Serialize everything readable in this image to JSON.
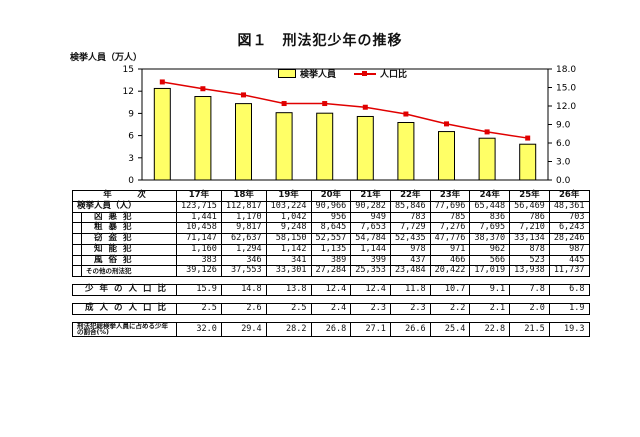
{
  "title": "図１　刑法犯少年の推移",
  "y_left_label": "検挙人員（万人）",
  "legend": {
    "bar": "検挙人員",
    "line": "人口比"
  },
  "colors": {
    "bar": "#ffff66",
    "line": "#e00000"
  },
  "chart_data": {
    "type": "bar",
    "categories": [
      "17年",
      "18年",
      "19年",
      "20年",
      "21年",
      "22年",
      "23年",
      "24年",
      "25年",
      "26年"
    ],
    "series": [
      {
        "name": "検挙人員",
        "type": "bar",
        "axis": "left",
        "values": [
          12.3715,
          11.2817,
          10.3224,
          9.0966,
          9.0282,
          8.5846,
          7.7696,
          6.5448,
          5.6469,
          4.8361
        ]
      },
      {
        "name": "人口比",
        "type": "line",
        "axis": "right",
        "values": [
          15.9,
          14.8,
          13.8,
          12.4,
          12.4,
          11.8,
          10.7,
          9.1,
          7.8,
          6.8
        ]
      }
    ],
    "y_left": {
      "min": 0,
      "max": 15,
      "ticks": [
        "0",
        "3",
        "6",
        "9",
        "12",
        "15"
      ]
    },
    "y_right": {
      "min": 0,
      "max": 18,
      "ticks": [
        "0.0",
        "3.0",
        "6.0",
        "9.0",
        "12.0",
        "15.0",
        "18.0"
      ]
    }
  },
  "table": {
    "header": {
      "label": "年　　　次",
      "years": [
        "17年",
        "18年",
        "19年",
        "20年",
        "21年",
        "22年",
        "23年",
        "24年",
        "25年",
        "26年"
      ]
    },
    "main_row": {
      "label": "検挙人員（人）",
      "values": [
        "123,715",
        "112,817",
        "103,224",
        "90,966",
        "90,282",
        "85,846",
        "77,696",
        "65,448",
        "56,469",
        "48,361"
      ]
    },
    "sub_rows": [
      {
        "label": "凶悪犯",
        "values": [
          "1,441",
          "1,170",
          "1,042",
          "956",
          "949",
          "783",
          "785",
          "836",
          "786",
          "703"
        ]
      },
      {
        "label": "粗暴犯",
        "values": [
          "10,458",
          "9,817",
          "9,248",
          "8,645",
          "7,653",
          "7,729",
          "7,276",
          "7,695",
          "7,210",
          "6,243"
        ]
      },
      {
        "label": "窃盗犯",
        "values": [
          "71,147",
          "62,637",
          "58,150",
          "52,557",
          "54,784",
          "52,435",
          "47,776",
          "38,370",
          "33,134",
          "28,246"
        ]
      },
      {
        "label": "知能犯",
        "values": [
          "1,160",
          "1,294",
          "1,142",
          "1,135",
          "1,144",
          "978",
          "971",
          "962",
          "878",
          "987"
        ]
      },
      {
        "label": "風俗犯",
        "values": [
          "383",
          "346",
          "341",
          "389",
          "399",
          "437",
          "466",
          "566",
          "523",
          "445"
        ]
      },
      {
        "label": "その他の刑法犯",
        "values": [
          "39,126",
          "37,553",
          "33,301",
          "27,284",
          "25,353",
          "23,484",
          "20,422",
          "17,019",
          "13,938",
          "11,737"
        ]
      }
    ],
    "youth_ratio": {
      "label": "少年の人口比",
      "values": [
        "15.9",
        "14.8",
        "13.8",
        "12.4",
        "12.4",
        "11.8",
        "10.7",
        "9.1",
        "7.8",
        "6.8"
      ]
    },
    "adult_ratio": {
      "label": "成人の人口比",
      "values": [
        "2.5",
        "2.6",
        "2.5",
        "2.4",
        "2.3",
        "2.3",
        "2.2",
        "2.1",
        "2.0",
        "1.9"
      ]
    },
    "youth_share": {
      "label": "刑法犯総検挙人員に占める少年の割合(%)",
      "values": [
        "32.0",
        "29.4",
        "28.2",
        "26.8",
        "27.1",
        "26.6",
        "25.4",
        "22.8",
        "21.5",
        "19.3"
      ]
    }
  }
}
